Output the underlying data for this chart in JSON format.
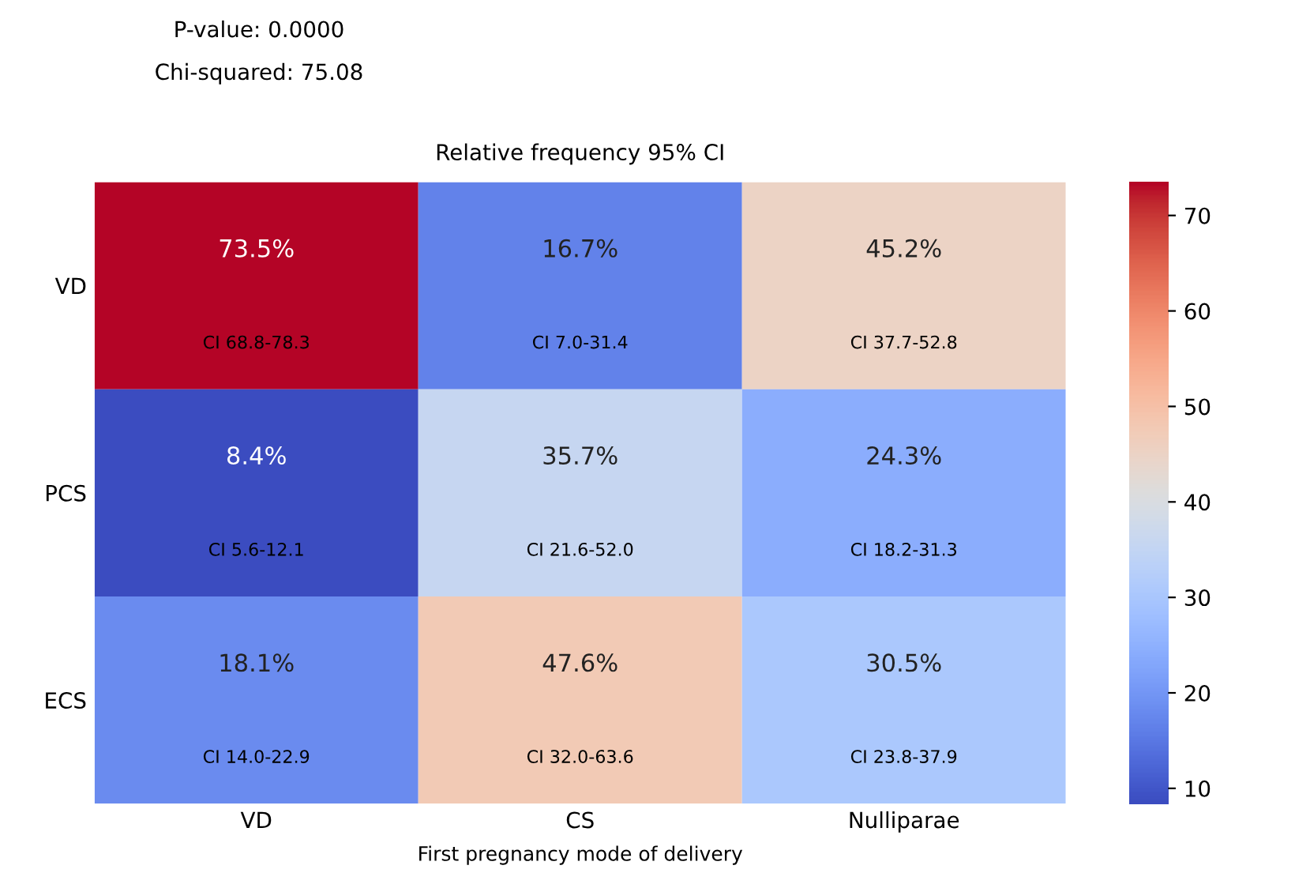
{
  "chart_data": {
    "type": "heatmap",
    "title": "Relative frequency 95% CI",
    "xlabel": "First pregnancy mode of delivery",
    "categories": [
      "VD",
      "CS",
      "Nulliparae"
    ],
    "y_categories": [
      "VD",
      "PCS",
      "ECS"
    ],
    "cells": [
      [
        73.5,
        16.7,
        45.2
      ],
      [
        8.4,
        35.7,
        24.3
      ],
      [
        18.1,
        47.6,
        30.5
      ]
    ],
    "cell_labels": [
      [
        "73.5%\nCI 68.8-78.3",
        "16.7%\nCI 7.0-31.4",
        "45.2%\nCI 37.7-52.8"
      ],
      [
        "8.4%\nCI 5.6-12.1",
        "35.7%\nCI 21.6-52.0",
        "24.3%\nCI 18.2-31.3"
      ],
      [
        "18.1%\nCI 14.0-22.9",
        "47.6%\nCI 32.0-63.6",
        "30.5%\nCI 23.8-37.9"
      ]
    ],
    "clim": [
      8.4,
      73.5
    ],
    "cticks": [
      10,
      20,
      30,
      40,
      50,
      60,
      70
    ],
    "annotations": [
      "P-value: 0.0000",
      "Chi-squared: 75.08"
    ]
  }
}
